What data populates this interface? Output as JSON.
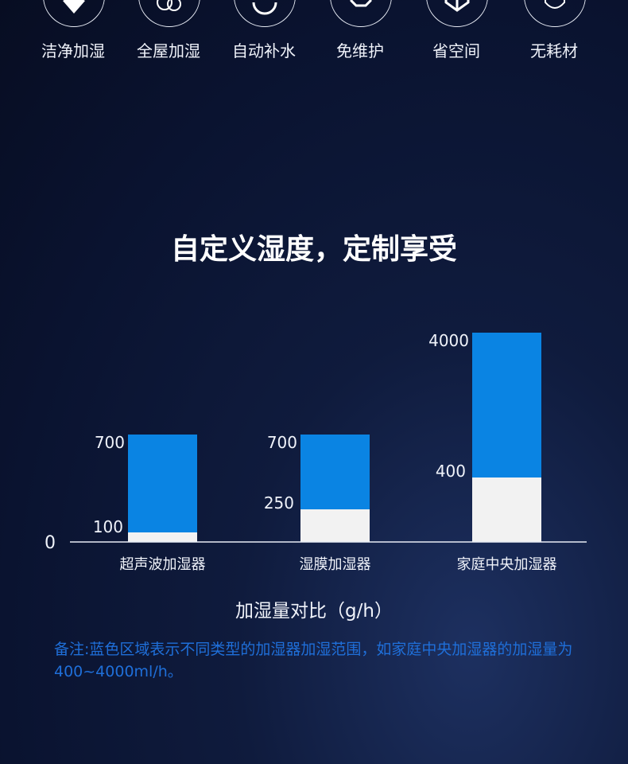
{
  "features": [
    {
      "label": "洁净加湿",
      "icon": "diamond-check-icon"
    },
    {
      "label": "全屋加湿",
      "icon": "house-rings-icon"
    },
    {
      "label": "自动补水",
      "icon": "refresh-cycle-icon"
    },
    {
      "label": "免维护",
      "icon": "gear-icon"
    },
    {
      "label": "省空间",
      "icon": "cube-icon"
    },
    {
      "label": "无耗材",
      "icon": "shield-icon"
    }
  ],
  "title": "自定义湿度，定制享受",
  "chart_data": {
    "type": "bar",
    "categories": [
      "超声波加湿器",
      "湿膜加湿器",
      "家庭中央加湿器"
    ],
    "ranges": [
      {
        "low": 100,
        "high": 700
      },
      {
        "low": 250,
        "high": 700
      },
      {
        "low": 400,
        "high": 4000
      }
    ],
    "baseline_label": "0",
    "xlabel": "加湿量对比（g/h）",
    "scale": "non-linear",
    "colors": {
      "range": "#0a84e3",
      "base": "#f2f2f2"
    }
  },
  "note": "备注:蓝色区域表示不同类型的加湿器加湿范围，如家庭中央加湿器的加湿量为400~4000ml/h。"
}
